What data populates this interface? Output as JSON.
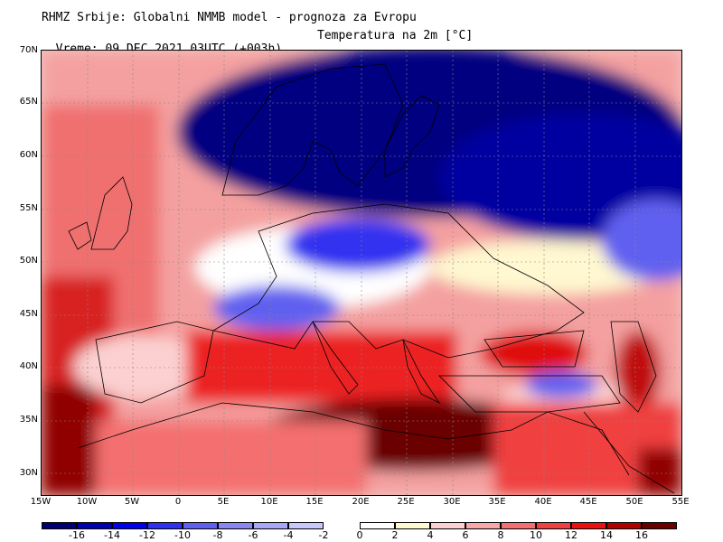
{
  "header": {
    "title": "RHMZ Srbije: Globalni NMMB model - prognoza za Evropu",
    "time": "Vreme: 09 DEC 2021 03UTC (+003h)",
    "field": "Temperatura na 2m [°C]"
  },
  "map": {
    "lat_labels": [
      "70N",
      "65N",
      "60N",
      "55N",
      "50N",
      "45N",
      "40N",
      "35N",
      "30N"
    ],
    "lon_labels": [
      "15W",
      "10W",
      "5W",
      "0",
      "5E",
      "10E",
      "15E",
      "20E",
      "25E",
      "30E",
      "35E",
      "40E",
      "45E",
      "50E",
      "55E"
    ],
    "lat_range": [
      28,
      70
    ],
    "lon_range": [
      -15,
      55
    ]
  },
  "colorbar": {
    "labels": [
      "-16",
      "-14",
      "-12",
      "-10",
      "-8",
      "-6",
      "-4",
      "-2",
      "0",
      "2",
      "4",
      "6",
      "8",
      "10",
      "12",
      "14",
      "16"
    ],
    "colors": [
      "#000070",
      "#0000b0",
      "#0000ee",
      "#3030f0",
      "#6060f0",
      "#8888f0",
      "#a8a8f8",
      "#c8c8fc",
      "#ffffff",
      "#fff8d0",
      "#fcd0d0",
      "#f8a8a8",
      "#f47070",
      "#f04040",
      "#ec1010",
      "#b00000",
      "#680000"
    ]
  }
}
